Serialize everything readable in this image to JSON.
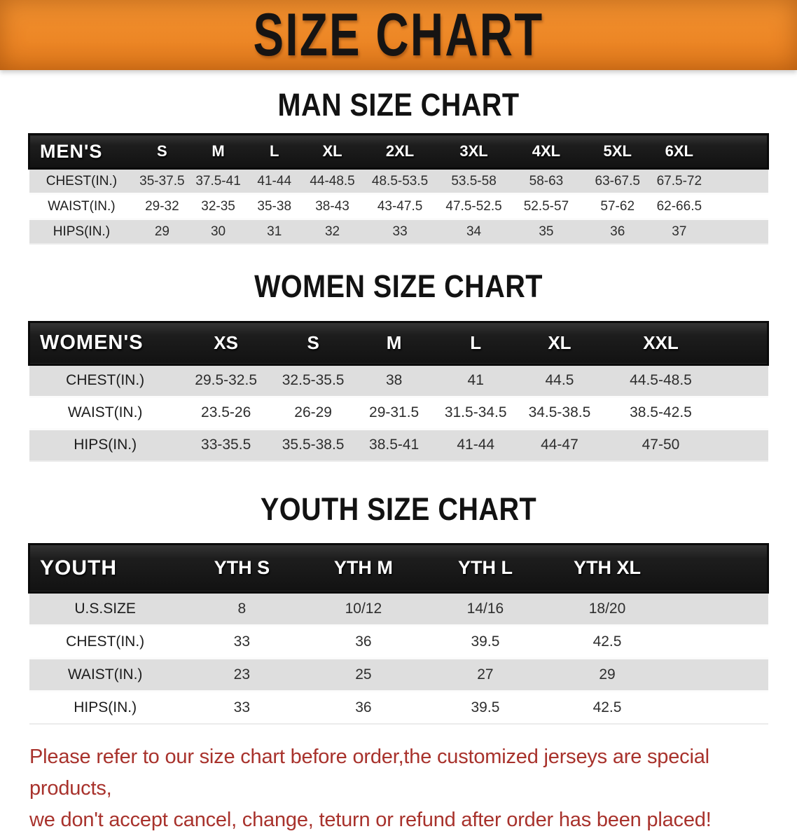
{
  "banner": {
    "title": "SIZE CHART",
    "background_color": "#ED8726",
    "title_color": "#161413"
  },
  "chart_data": [
    {
      "type": "table",
      "title": "MAN SIZE CHART",
      "corner_label": "MEN'S",
      "columns": [
        "S",
        "M",
        "L",
        "XL",
        "2XL",
        "3XL",
        "4XL",
        "5XL",
        "6XL"
      ],
      "rows": [
        {
          "label": "CHEST(IN.)",
          "values": [
            "35-37.5",
            "37.5-41",
            "41-44",
            "44-48.5",
            "48.5-53.5",
            "53.5-58",
            "58-63",
            "63-67.5",
            "67.5-72"
          ]
        },
        {
          "label": "WAIST(IN.)",
          "values": [
            "29-32",
            "32-35",
            "35-38",
            "38-43",
            "43-47.5",
            "47.5-52.5",
            "52.5-57",
            "57-62",
            "62-66.5"
          ]
        },
        {
          "label": "HIPS(IN.)",
          "values": [
            "29",
            "30",
            "31",
            "32",
            "33",
            "34",
            "35",
            "36",
            "37"
          ]
        }
      ]
    },
    {
      "type": "table",
      "title": "WOMEN SIZE CHART",
      "corner_label": "WOMEN'S",
      "columns": [
        "XS",
        "S",
        "M",
        "L",
        "XL",
        "XXL"
      ],
      "rows": [
        {
          "label": "CHEST(IN.)",
          "values": [
            "29.5-32.5",
            "32.5-35.5",
            "38",
            "41",
            "44.5",
            "44.5-48.5"
          ]
        },
        {
          "label": "WAIST(IN.)",
          "values": [
            "23.5-26",
            "26-29",
            "29-31.5",
            "31.5-34.5",
            "34.5-38.5",
            "38.5-42.5"
          ]
        },
        {
          "label": "HIPS(IN.)",
          "values": [
            "33-35.5",
            "35.5-38.5",
            "38.5-41",
            "41-44",
            "44-47",
            "47-50"
          ]
        }
      ]
    },
    {
      "type": "table",
      "title": "YOUTH SIZE CHART",
      "corner_label": "YOUTH",
      "columns": [
        "YTH S",
        "YTH M",
        "YTH L",
        "YTH XL"
      ],
      "rows": [
        {
          "label": "U.S.SIZE",
          "values": [
            "8",
            "10/12",
            "14/16",
            "18/20"
          ]
        },
        {
          "label": "CHEST(IN.)",
          "values": [
            "33",
            "36",
            "39.5",
            "42.5"
          ]
        },
        {
          "label": "WAIST(IN.)",
          "values": [
            "23",
            "25",
            "27",
            "29"
          ]
        },
        {
          "label": "HIPS(IN.)",
          "values": [
            "33",
            "36",
            "39.5",
            "42.5"
          ]
        }
      ]
    }
  ],
  "footer": {
    "line1": "Please refer to our size chart before order,the customized jerseys are special products,",
    "line2": "we don't accept cancel, change, teturn or refund after order has been placed!",
    "text_color": "#A8322C"
  }
}
